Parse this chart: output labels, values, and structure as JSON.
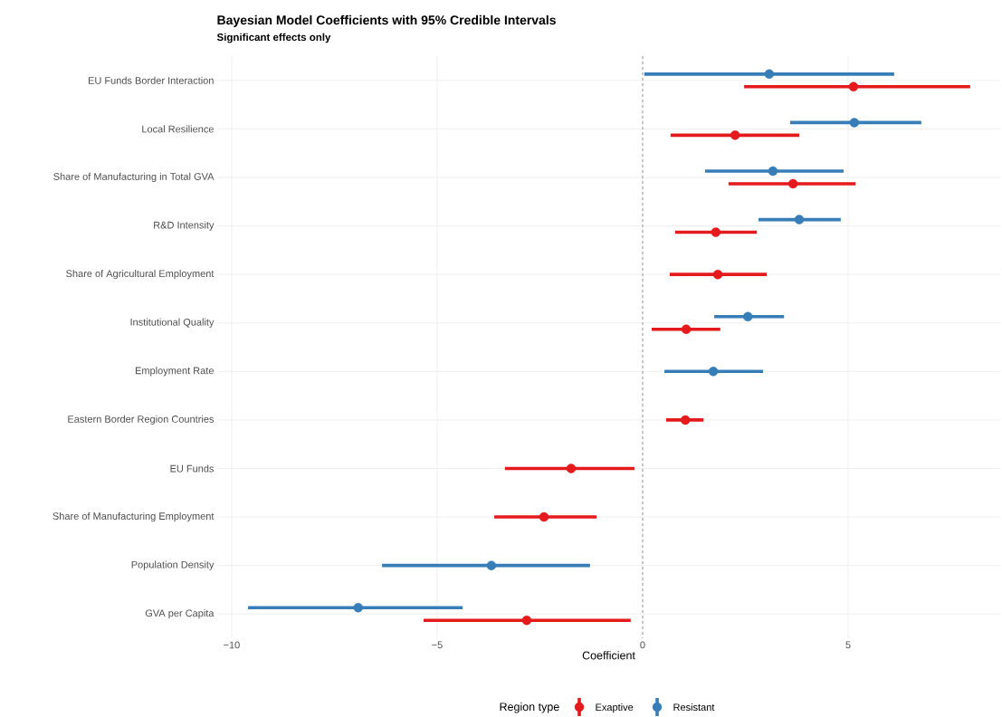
{
  "chart_data": {
    "type": "scatter",
    "orientation": "horizontal",
    "title": "Bayesian Model Coefficients with 95% Credible Intervals",
    "subtitle": "Significant effects only",
    "xlabel": "Coefficient",
    "legend_title": "Region type",
    "categories": [
      "EU Funds Border Interaction",
      "Local Resilience",
      "Share of Manufacturing in Total GVA",
      "R&D Intensity",
      "Share of Agricultural Employment",
      "Institutional Quality",
      "Employment Rate",
      "Eastern Border Region Countries",
      "EU Funds",
      "Share of Manufacturing Employment",
      "Population Density",
      "GVA per Capita"
    ],
    "series": [
      {
        "name": "Exaptive",
        "color": "#e41a1c",
        "values": [
          5.13,
          2.25,
          3.66,
          1.78,
          1.83,
          1.06,
          null,
          1.04,
          -1.74,
          -2.4,
          null,
          -2.82
        ],
        "errors": [
          [
            2.47,
            7.97
          ],
          [
            0.68,
            3.81
          ],
          [
            2.09,
            5.18
          ],
          [
            0.79,
            2.78
          ],
          [
            0.66,
            3.02
          ],
          [
            0.22,
            1.89
          ],
          null,
          [
            0.57,
            1.48
          ],
          [
            -3.35,
            -0.2
          ],
          [
            -3.61,
            -1.12
          ],
          null,
          [
            -5.33,
            -0.29
          ]
        ]
      },
      {
        "name": "Resistant",
        "color": "#377eb8",
        "values": [
          3.08,
          5.15,
          3.17,
          3.81,
          null,
          2.56,
          1.72,
          null,
          null,
          null,
          -3.68,
          -6.92
        ],
        "errors": [
          [
            0.04,
            6.12
          ],
          [
            3.59,
            6.78
          ],
          [
            1.52,
            4.89
          ],
          [
            2.82,
            4.82
          ],
          null,
          [
            1.74,
            3.44
          ],
          [
            0.53,
            2.93
          ],
          null,
          null,
          null,
          [
            -6.34,
            -1.28
          ],
          [
            -9.6,
            -4.38
          ]
        ]
      }
    ],
    "xlim": [
      -10.35,
      8.7
    ],
    "xticks": [
      {
        "value": -10,
        "label": "−10"
      },
      {
        "value": -5,
        "label": "−5"
      },
      0,
      5
    ],
    "ref_lines": [
      {
        "axis": "x",
        "value": 0,
        "color": "#808080",
        "line_style": "dashed"
      }
    ],
    "grid": true,
    "legend": "bottom",
    "marker": "circle"
  }
}
